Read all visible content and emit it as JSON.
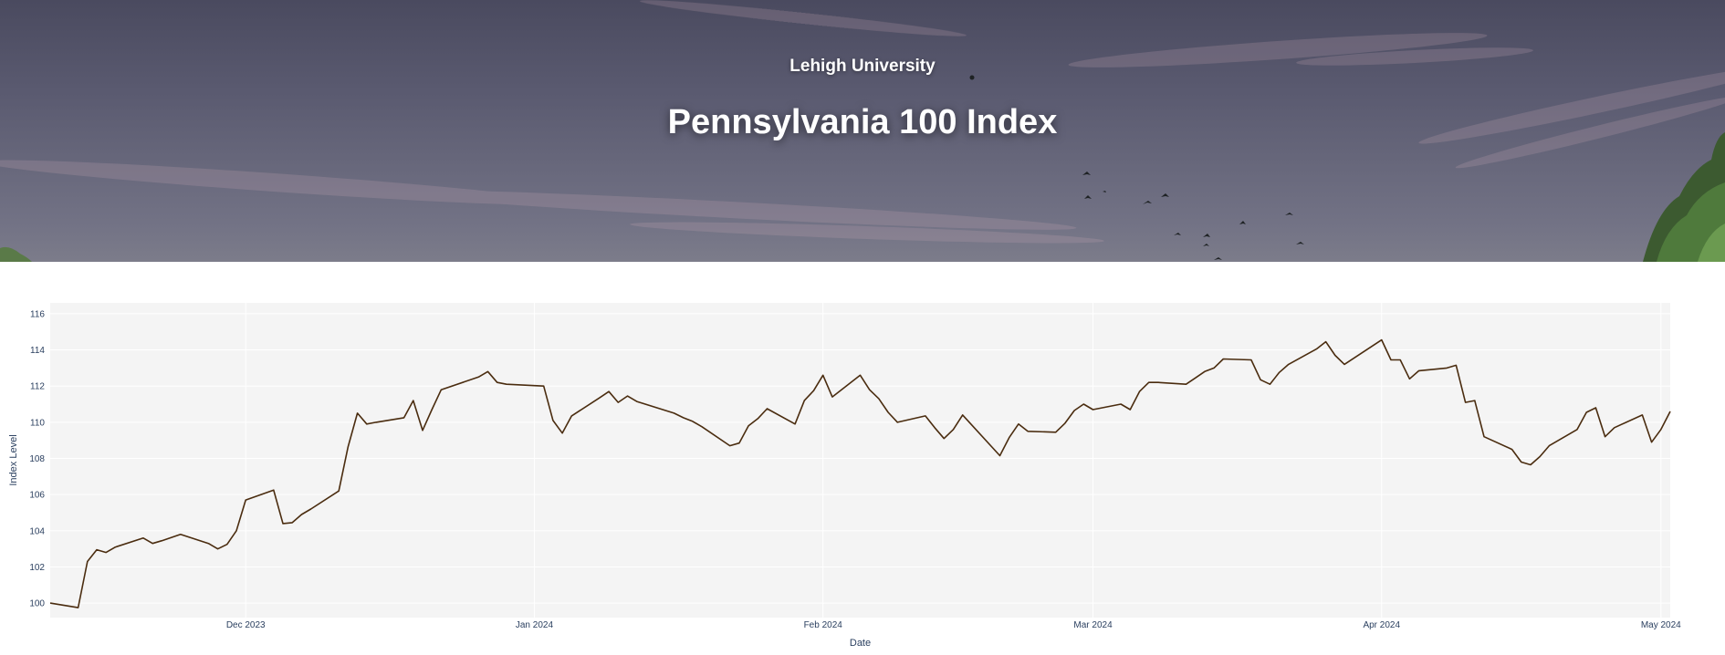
{
  "header": {
    "subtitle": "Lehigh University",
    "title": "Pennsylvania 100 Index"
  },
  "colors": {
    "line": "#4a2c0f",
    "plot_bg": "#f4f4f4",
    "grid": "#ffffff",
    "tick_text": "#2a3f5f"
  },
  "chart_data": {
    "type": "line",
    "xlabel": "Date",
    "ylabel": "Index Level",
    "x_tick_labels": [
      "Dec 2023",
      "Jan 2024",
      "Feb 2024",
      "Mar 2024",
      "Apr 2024",
      "May 2024"
    ],
    "x_tick_dates": [
      "2023-12-01",
      "2024-01-01",
      "2024-02-01",
      "2024-03-01",
      "2024-04-01",
      "2024-05-01"
    ],
    "y_ticks": [
      100,
      102,
      104,
      106,
      108,
      110,
      112,
      114,
      116
    ],
    "xlim": [
      "2023-11-10",
      "2024-05-02"
    ],
    "ylim": [
      99.2,
      116.6
    ],
    "grid": true,
    "series": [
      {
        "x": [
          "2023-11-10",
          "2023-11-13",
          "2023-11-14",
          "2023-11-15",
          "2023-11-16",
          "2023-11-17",
          "2023-11-20",
          "2023-11-21",
          "2023-11-22",
          "2023-11-24",
          "2023-11-27",
          "2023-11-28",
          "2023-11-29",
          "2023-11-30",
          "2023-12-01",
          "2023-12-04",
          "2023-12-05",
          "2023-12-06",
          "2023-12-07",
          "2023-12-08",
          "2023-12-11",
          "2023-12-12",
          "2023-12-13",
          "2023-12-14",
          "2023-12-15",
          "2023-12-18",
          "2023-12-19",
          "2023-12-20",
          "2023-12-21",
          "2023-12-22",
          "2023-12-26",
          "2023-12-27",
          "2023-12-28",
          "2023-12-29",
          "2024-01-02",
          "2024-01-03",
          "2024-01-04",
          "2024-01-05",
          "2024-01-08",
          "2024-01-09",
          "2024-01-10",
          "2024-01-11",
          "2024-01-12",
          "2024-01-16",
          "2024-01-17",
          "2024-01-18",
          "2024-01-19",
          "2024-01-22",
          "2024-01-23",
          "2024-01-24",
          "2024-01-25",
          "2024-01-26",
          "2024-01-29",
          "2024-01-30",
          "2024-01-31",
          "2024-02-01",
          "2024-02-02",
          "2024-02-05",
          "2024-02-06",
          "2024-02-07",
          "2024-02-08",
          "2024-02-09",
          "2024-02-12",
          "2024-02-13",
          "2024-02-14",
          "2024-02-15",
          "2024-02-16",
          "2024-02-20",
          "2024-02-21",
          "2024-02-22",
          "2024-02-23",
          "2024-02-26",
          "2024-02-27",
          "2024-02-28",
          "2024-02-29",
          "2024-03-01",
          "2024-03-04",
          "2024-03-05",
          "2024-03-06",
          "2024-03-07",
          "2024-03-08",
          "2024-03-11",
          "2024-03-12",
          "2024-03-13",
          "2024-03-14",
          "2024-03-15",
          "2024-03-18",
          "2024-03-19",
          "2024-03-20",
          "2024-03-21",
          "2024-03-22",
          "2024-03-25",
          "2024-03-26",
          "2024-03-27",
          "2024-03-28",
          "2024-04-01",
          "2024-04-02",
          "2024-04-03",
          "2024-04-04",
          "2024-04-05",
          "2024-04-08",
          "2024-04-09",
          "2024-04-10",
          "2024-04-11",
          "2024-04-12",
          "2024-04-15",
          "2024-04-16",
          "2024-04-17",
          "2024-04-18",
          "2024-04-19",
          "2024-04-22",
          "2024-04-23",
          "2024-04-24",
          "2024-04-25",
          "2024-04-26",
          "2024-04-29",
          "2024-04-30",
          "2024-05-01",
          "2024-05-02"
        ],
        "y": [
          100.0,
          99.75,
          102.3,
          102.95,
          102.8,
          103.1,
          103.6,
          103.3,
          103.45,
          103.8,
          103.3,
          103.0,
          103.25,
          104.0,
          105.7,
          106.25,
          104.4,
          104.45,
          104.9,
          105.2,
          106.2,
          108.65,
          110.5,
          109.9,
          110.0,
          110.25,
          111.2,
          109.55,
          110.7,
          111.8,
          112.5,
          112.8,
          112.2,
          112.1,
          112.0,
          110.1,
          109.4,
          110.35,
          111.35,
          111.7,
          111.1,
          111.45,
          111.15,
          110.5,
          110.25,
          110.05,
          109.75,
          108.7,
          108.85,
          109.8,
          110.2,
          110.75,
          109.9,
          111.2,
          111.75,
          112.6,
          111.4,
          112.6,
          111.8,
          111.3,
          110.55,
          110.0,
          110.35,
          109.7,
          109.1,
          109.6,
          110.4,
          108.15,
          109.15,
          109.9,
          109.5,
          109.45,
          109.95,
          110.65,
          111.0,
          110.7,
          111.0,
          110.7,
          111.7,
          112.2,
          112.2,
          112.1,
          112.45,
          112.8,
          113.0,
          113.5,
          113.45,
          112.35,
          112.1,
          112.75,
          113.2,
          114.05,
          114.45,
          113.7,
          113.2,
          114.55,
          113.45,
          113.45,
          112.4,
          112.85,
          113.0,
          113.15,
          111.1,
          111.2,
          109.2,
          108.5,
          107.8,
          107.65,
          108.1,
          108.7,
          109.6,
          110.55,
          110.8,
          109.2,
          109.7,
          110.4,
          108.9,
          109.6,
          110.6
        ]
      }
    ]
  }
}
